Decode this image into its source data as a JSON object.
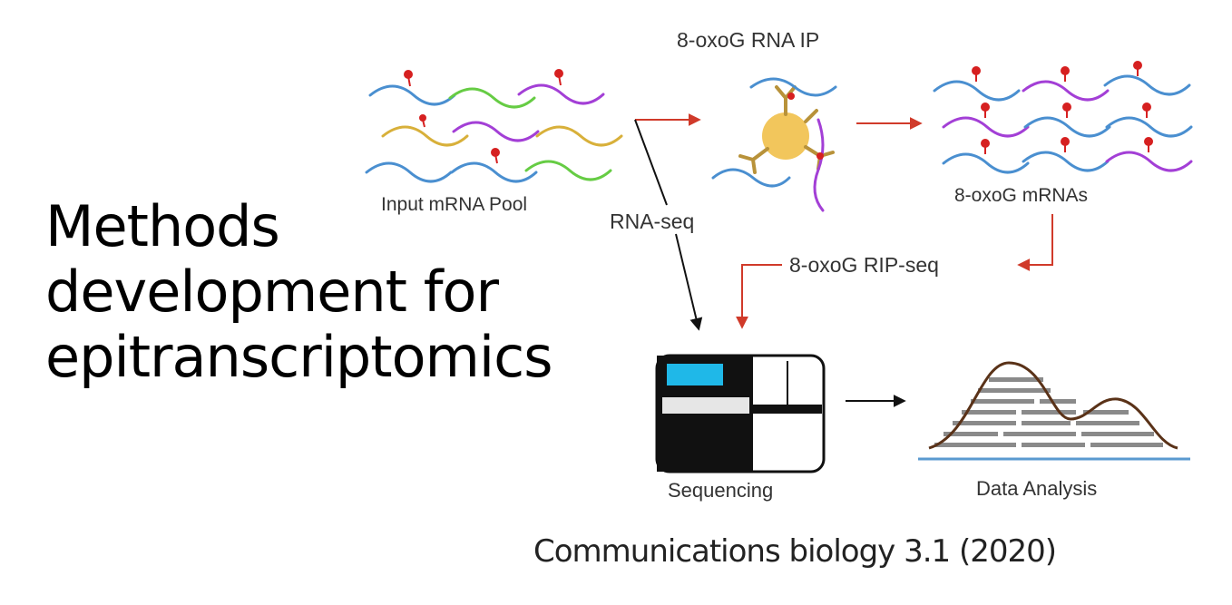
{
  "title_lines": [
    "Methods",
    "development for",
    "epitranscriptomics"
  ],
  "citation": "Communications biology 3.1 (2020)",
  "diagram": {
    "step_input": "Input mRNA Pool",
    "step_ip": "8-oxoG RNA IP",
    "step_enriched": "8-oxoG mRNAs",
    "path_rnaseq": "RNA-seq",
    "path_ripseq": "8-oxoG RIP-seq",
    "step_sequencing": "Sequencing",
    "step_analysis": "Data Analysis"
  },
  "colors": {
    "strand_blue": "#4a8fd0",
    "strand_green": "#66cc44",
    "strand_purple": "#a33fd6",
    "strand_yellow": "#d8b03a",
    "mark_red": "#d62020",
    "arrow_red": "#d03a2a",
    "antibody": "#b8923a",
    "bead": "#f2c65c",
    "screen_cyan": "#1fb8e8",
    "peak_brown": "#5a3218",
    "baseline_blue": "#5a9ad0"
  }
}
